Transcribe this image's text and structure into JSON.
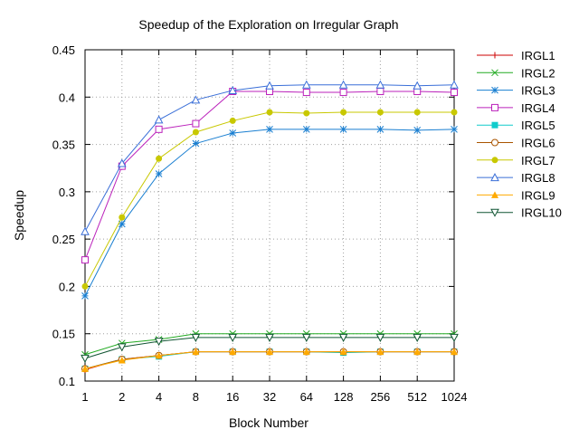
{
  "chart_data": {
    "type": "line",
    "title": "Speedup of the Exploration on Irregular Graph",
    "xlabel": "Block Number",
    "ylabel": "Speedup",
    "x_scale": "log2",
    "x": [
      1,
      2,
      4,
      8,
      16,
      32,
      64,
      128,
      256,
      512,
      1024
    ],
    "x_tick_labels": [
      "1",
      "2",
      "4",
      "8",
      "16",
      "32",
      "64",
      "128",
      "256",
      "512",
      "1024"
    ],
    "ylim": [
      0.1,
      0.45
    ],
    "y_ticks": [
      0.1,
      0.15,
      0.2,
      0.25,
      0.3,
      0.35,
      0.4,
      0.45
    ],
    "y_tick_labels": [
      "0.1",
      "0.15",
      "0.2",
      "0.25",
      "0.3",
      "0.35",
      "0.4",
      "0.45"
    ],
    "grid": true,
    "legend_position": "right",
    "series": [
      {
        "name": "IRGL1",
        "color": "#cc0000",
        "marker": "plus",
        "values": [
          0.112,
          0.123,
          0.127,
          0.131,
          0.131,
          0.131,
          0.131,
          0.131,
          0.131,
          0.131,
          0.131
        ]
      },
      {
        "name": "IRGL2",
        "color": "#22aa22",
        "marker": "cross",
        "values": [
          0.128,
          0.14,
          0.144,
          0.15,
          0.15,
          0.15,
          0.15,
          0.15,
          0.15,
          0.15,
          0.15
        ]
      },
      {
        "name": "IRGL3",
        "color": "#1a7fd1",
        "marker": "star",
        "values": [
          0.19,
          0.266,
          0.319,
          0.351,
          0.362,
          0.366,
          0.366,
          0.366,
          0.366,
          0.365,
          0.366
        ]
      },
      {
        "name": "IRGL4",
        "color": "#bb22bb",
        "marker": "square-open",
        "values": [
          0.228,
          0.327,
          0.366,
          0.372,
          0.406,
          0.406,
          0.405,
          0.405,
          0.406,
          0.406,
          0.405
        ]
      },
      {
        "name": "IRGL5",
        "color": "#11cccc",
        "marker": "square-filled",
        "values": [
          0.113,
          0.123,
          0.126,
          0.131,
          0.131,
          0.131,
          0.131,
          0.13,
          0.131,
          0.131,
          0.131
        ]
      },
      {
        "name": "IRGL6",
        "color": "#aa5500",
        "marker": "circle-open",
        "values": [
          0.113,
          0.123,
          0.127,
          0.131,
          0.131,
          0.131,
          0.131,
          0.131,
          0.131,
          0.131,
          0.131
        ]
      },
      {
        "name": "IRGL7",
        "color": "#c8c800",
        "marker": "circle-filled",
        "values": [
          0.2,
          0.273,
          0.335,
          0.363,
          0.375,
          0.384,
          0.383,
          0.384,
          0.384,
          0.384,
          0.384
        ]
      },
      {
        "name": "IRGL8",
        "color": "#3a6fd8",
        "marker": "triangle-open",
        "values": [
          0.258,
          0.33,
          0.376,
          0.397,
          0.407,
          0.412,
          0.413,
          0.413,
          0.413,
          0.412,
          0.413
        ]
      },
      {
        "name": "IRGL9",
        "color": "#ffaa00",
        "marker": "triangle-filled",
        "values": [
          0.113,
          0.122,
          0.127,
          0.131,
          0.131,
          0.131,
          0.131,
          0.131,
          0.131,
          0.131,
          0.131
        ]
      },
      {
        "name": "IRGL10",
        "color": "#115533",
        "marker": "triangle-down-open",
        "values": [
          0.124,
          0.136,
          0.142,
          0.146,
          0.146,
          0.146,
          0.146,
          0.146,
          0.146,
          0.146,
          0.146
        ]
      }
    ]
  }
}
